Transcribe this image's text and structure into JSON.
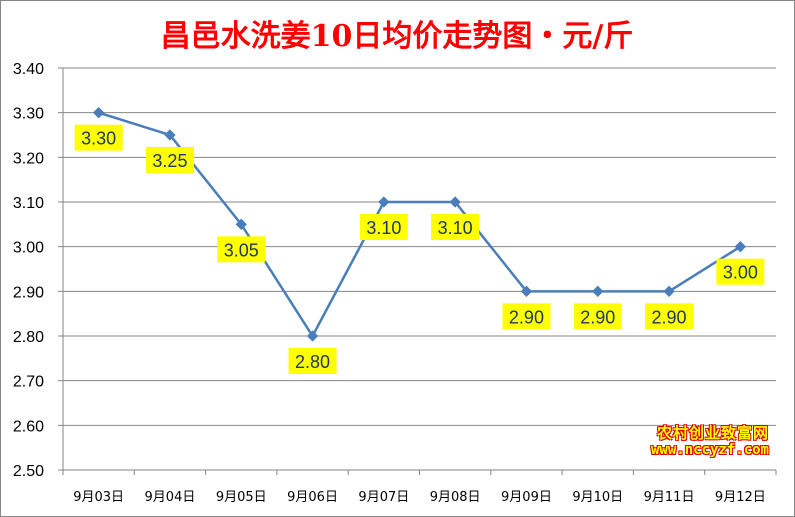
{
  "chart_data": {
    "type": "line",
    "title": "昌邑水洗姜10日均价走势图・元/斤",
    "categories": [
      "9月03日",
      "9月04日",
      "9月05日",
      "9月06日",
      "9月07日",
      "9月08日",
      "9月09日",
      "9月10日",
      "9月11日",
      "9月12日"
    ],
    "values": [
      3.3,
      3.25,
      3.05,
      2.8,
      3.1,
      3.1,
      2.9,
      2.9,
      2.9,
      3.0
    ],
    "data_labels": [
      "3.30",
      "3.25",
      "3.05",
      "2.80",
      "3.10",
      "3.10",
      "2.90",
      "2.90",
      "2.90",
      "3.00"
    ],
    "ylim": [
      2.5,
      3.4
    ],
    "yticks": [
      "2.50",
      "2.60",
      "2.70",
      "2.80",
      "2.90",
      "3.00",
      "3.10",
      "3.20",
      "3.30",
      "3.40"
    ],
    "grid": true,
    "legend": "none",
    "colors": {
      "line": "#4a7ebb",
      "title": "#ff0000",
      "label_bg": "#ffff00",
      "grid": "#868686"
    }
  },
  "watermark": {
    "line1": "农村创业致富网",
    "line2": "www.nccyzf.com"
  }
}
